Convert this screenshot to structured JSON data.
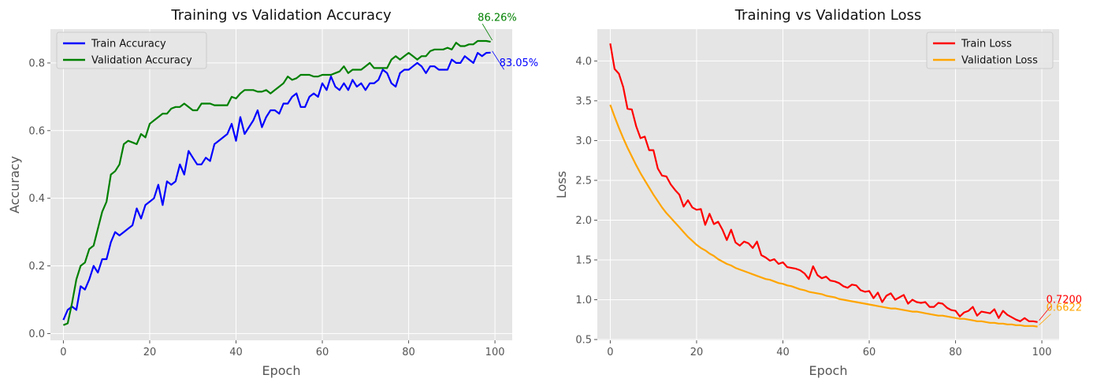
{
  "chart_data": [
    {
      "type": "line",
      "title": "Training vs Validation Accuracy",
      "xlabel": "Epoch",
      "ylabel": "Accuracy",
      "xlim": [
        -3,
        104
      ],
      "ylim": [
        -0.02,
        0.9
      ],
      "xticks": [
        0,
        20,
        40,
        60,
        80,
        100
      ],
      "xtick_labels": [
        "0",
        "20",
        "40",
        "60",
        "80",
        "100"
      ],
      "yticks": [
        0.0,
        0.2,
        0.4,
        0.6,
        0.8
      ],
      "ytick_labels": [
        "0.0",
        "0.2",
        "0.4",
        "0.6",
        "0.8"
      ],
      "grid": true,
      "legend": "upper-left",
      "series": [
        {
          "name": "Train Accuracy",
          "color": "#0000ff",
          "values": [
            0.04,
            0.07,
            0.08,
            0.07,
            0.14,
            0.13,
            0.16,
            0.2,
            0.18,
            0.22,
            0.22,
            0.27,
            0.3,
            0.29,
            0.3,
            0.31,
            0.32,
            0.37,
            0.34,
            0.38,
            0.39,
            0.4,
            0.44,
            0.38,
            0.45,
            0.44,
            0.45,
            0.5,
            0.47,
            0.54,
            0.52,
            0.5,
            0.5,
            0.52,
            0.51,
            0.56,
            0.57,
            0.58,
            0.59,
            0.62,
            0.57,
            0.64,
            0.59,
            0.61,
            0.63,
            0.66,
            0.61,
            0.64,
            0.66,
            0.66,
            0.65,
            0.68,
            0.68,
            0.7,
            0.71,
            0.67,
            0.67,
            0.7,
            0.71,
            0.7,
            0.74,
            0.72,
            0.76,
            0.73,
            0.72,
            0.74,
            0.72,
            0.75,
            0.73,
            0.74,
            0.72,
            0.74,
            0.74,
            0.75,
            0.78,
            0.77,
            0.74,
            0.73,
            0.77,
            0.78,
            0.78,
            0.79,
            0.8,
            0.79,
            0.77,
            0.79,
            0.79,
            0.78,
            0.78,
            0.78,
            0.81,
            0.8,
            0.8,
            0.82,
            0.81,
            0.8,
            0.83,
            0.82,
            0.83,
            0.8305
          ]
        },
        {
          "name": "Validation Accuracy",
          "color": "#008000",
          "values": [
            0.025,
            0.03,
            0.09,
            0.16,
            0.2,
            0.21,
            0.25,
            0.26,
            0.31,
            0.36,
            0.39,
            0.47,
            0.48,
            0.5,
            0.56,
            0.57,
            0.565,
            0.56,
            0.59,
            0.58,
            0.62,
            0.63,
            0.64,
            0.65,
            0.65,
            0.665,
            0.67,
            0.67,
            0.68,
            0.67,
            0.66,
            0.66,
            0.68,
            0.68,
            0.68,
            0.675,
            0.675,
            0.675,
            0.675,
            0.7,
            0.695,
            0.71,
            0.72,
            0.72,
            0.72,
            0.715,
            0.715,
            0.72,
            0.71,
            0.72,
            0.73,
            0.74,
            0.76,
            0.75,
            0.755,
            0.765,
            0.765,
            0.765,
            0.76,
            0.76,
            0.765,
            0.765,
            0.765,
            0.77,
            0.775,
            0.79,
            0.77,
            0.78,
            0.78,
            0.78,
            0.79,
            0.8,
            0.785,
            0.785,
            0.785,
            0.785,
            0.81,
            0.82,
            0.81,
            0.82,
            0.83,
            0.82,
            0.81,
            0.82,
            0.82,
            0.835,
            0.84,
            0.84,
            0.84,
            0.845,
            0.84,
            0.86,
            0.85,
            0.85,
            0.855,
            0.855,
            0.865,
            0.865,
            0.865,
            0.8626
          ]
        }
      ],
      "annotations": [
        {
          "text": "86.26%",
          "color": "#008000",
          "x": 99,
          "y": 0.8626,
          "text_x": 96,
          "text_y": 0.925
        },
        {
          "text": "83.05%",
          "color": "#0000ff",
          "x": 99,
          "y": 0.8305,
          "text_x": 101,
          "text_y": 0.79
        }
      ]
    },
    {
      "type": "line",
      "title": "Training vs Validation Loss",
      "xlabel": "Epoch",
      "ylabel": "Loss",
      "xlim": [
        -3,
        104
      ],
      "ylim": [
        0.49,
        4.4
      ],
      "xticks": [
        0,
        20,
        40,
        60,
        80,
        100
      ],
      "xtick_labels": [
        "0",
        "20",
        "40",
        "60",
        "80",
        "100"
      ],
      "yticks": [
        0.5,
        1.0,
        1.5,
        2.0,
        2.5,
        3.0,
        3.5,
        4.0
      ],
      "ytick_labels": [
        "0.5",
        "1.0",
        "1.5",
        "2.0",
        "2.5",
        "3.0",
        "3.5",
        "4.0"
      ],
      "grid": true,
      "legend": "upper-right",
      "series": [
        {
          "name": "Train Loss",
          "color": "#ff0000",
          "values": [
            4.22,
            3.9,
            3.84,
            3.67,
            3.4,
            3.39,
            3.18,
            3.03,
            3.05,
            2.88,
            2.88,
            2.65,
            2.56,
            2.55,
            2.45,
            2.38,
            2.32,
            2.17,
            2.25,
            2.16,
            2.13,
            2.14,
            1.94,
            2.08,
            1.95,
            1.98,
            1.88,
            1.75,
            1.88,
            1.72,
            1.68,
            1.73,
            1.71,
            1.65,
            1.73,
            1.56,
            1.53,
            1.49,
            1.51,
            1.45,
            1.47,
            1.41,
            1.4,
            1.39,
            1.37,
            1.33,
            1.26,
            1.42,
            1.31,
            1.27,
            1.29,
            1.24,
            1.23,
            1.21,
            1.17,
            1.15,
            1.19,
            1.18,
            1.12,
            1.1,
            1.11,
            1.02,
            1.09,
            0.97,
            1.05,
            1.08,
            1.0,
            1.03,
            1.06,
            0.95,
            1.0,
            0.97,
            0.96,
            0.97,
            0.91,
            0.91,
            0.96,
            0.95,
            0.9,
            0.87,
            0.86,
            0.79,
            0.84,
            0.86,
            0.91,
            0.8,
            0.85,
            0.84,
            0.83,
            0.88,
            0.77,
            0.86,
            0.81,
            0.78,
            0.75,
            0.73,
            0.77,
            0.73,
            0.73,
            0.72
          ]
        },
        {
          "name": "Validation Loss",
          "color": "#ffa500",
          "values": [
            3.45,
            3.3,
            3.16,
            3.03,
            2.91,
            2.8,
            2.69,
            2.59,
            2.5,
            2.41,
            2.32,
            2.24,
            2.16,
            2.09,
            2.03,
            1.97,
            1.91,
            1.85,
            1.79,
            1.74,
            1.69,
            1.65,
            1.62,
            1.58,
            1.55,
            1.51,
            1.48,
            1.45,
            1.43,
            1.4,
            1.38,
            1.36,
            1.34,
            1.32,
            1.3,
            1.28,
            1.26,
            1.25,
            1.23,
            1.21,
            1.2,
            1.18,
            1.17,
            1.15,
            1.13,
            1.12,
            1.1,
            1.09,
            1.08,
            1.07,
            1.05,
            1.04,
            1.03,
            1.01,
            1.0,
            0.99,
            0.98,
            0.97,
            0.96,
            0.95,
            0.94,
            0.93,
            0.92,
            0.91,
            0.9,
            0.89,
            0.89,
            0.88,
            0.87,
            0.86,
            0.85,
            0.85,
            0.84,
            0.83,
            0.82,
            0.81,
            0.8,
            0.8,
            0.79,
            0.78,
            0.77,
            0.76,
            0.76,
            0.75,
            0.74,
            0.73,
            0.73,
            0.72,
            0.71,
            0.71,
            0.7,
            0.7,
            0.69,
            0.69,
            0.68,
            0.68,
            0.67,
            0.67,
            0.67,
            0.6622
          ]
        }
      ],
      "annotations": [
        {
          "text": "0.7200",
          "color": "#ff0000",
          "x": 99,
          "y": 0.72,
          "text_x": 101,
          "text_y": 0.96
        },
        {
          "text": "0.6622",
          "color": "#ffa500",
          "x": 99,
          "y": 0.6622,
          "text_x": 101,
          "text_y": 0.86
        }
      ]
    }
  ]
}
